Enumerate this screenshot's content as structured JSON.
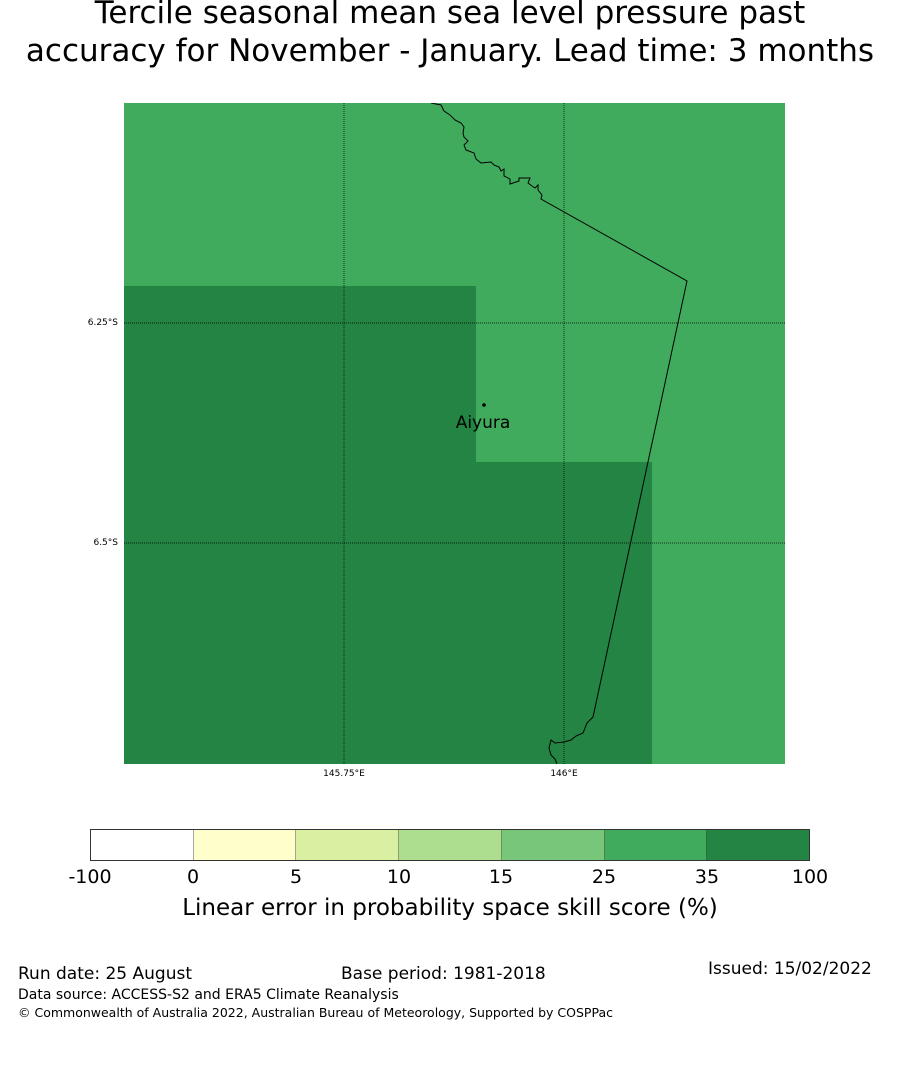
{
  "title": {
    "line1": "Tercile seasonal mean sea level pressure past",
    "line2": "accuracy for November - January. Lead time: 3 months"
  },
  "map": {
    "lat_labels": [
      "6.25°S",
      "6.5°S"
    ],
    "lon_labels": [
      "145.75°E",
      "146°E"
    ],
    "place": {
      "name": "Aiyura",
      "icon": "location-dot-icon"
    },
    "colors": {
      "skill_25_35": "#41ab5d",
      "skill_35_100": "#238443",
      "coastline": "#000000"
    }
  },
  "colorbar": {
    "title": "Linear error in probability space skill score (%)",
    "ticks": [
      "-100",
      "0",
      "5",
      "10",
      "15",
      "25",
      "35",
      "100"
    ],
    "colors": [
      "#ffffff",
      "#ffffcc",
      "#d9f0a3",
      "#addd8e",
      "#78c679",
      "#41ab5d",
      "#238443"
    ]
  },
  "footer": {
    "run_date": "Run date: 25 August",
    "base_period": "Base period: 1981-2018",
    "issued": "Issued: 15/02/2022",
    "data_source": "Data source: ACCESS-S2 and ERA5 Climate Reanalysis",
    "copyright": "© Commonwealth of Australia 2022, Australian Bureau of Meteorology, Supported by COSPPac"
  }
}
